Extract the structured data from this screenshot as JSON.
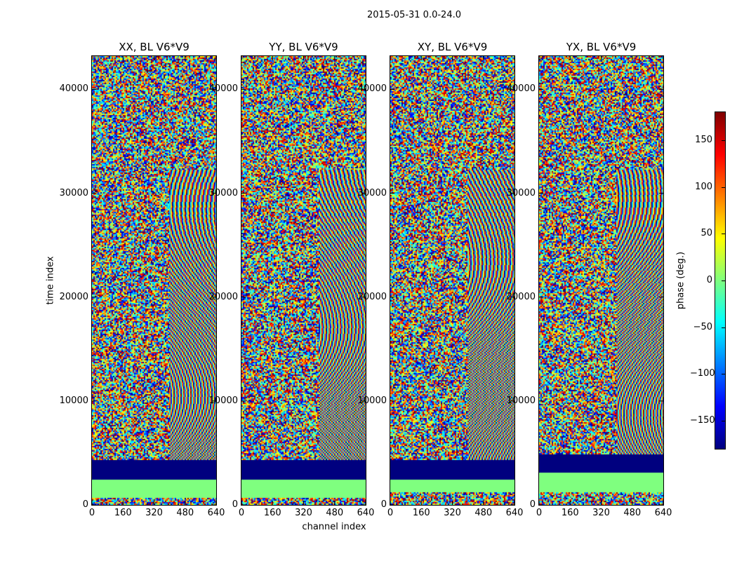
{
  "suptitle": "2015-05-31 0.0-24.0",
  "chart_data": [
    {
      "type": "heatmap",
      "title": "XX, BL V6*V9",
      "xlabel": "",
      "ylabel": "time index",
      "xlim": [
        0,
        640
      ],
      "ylim": [
        0,
        43200
      ],
      "xticks": [
        0,
        160,
        320,
        480,
        640
      ],
      "yticks": [
        0,
        10000,
        20000,
        30000,
        40000
      ]
    },
    {
      "type": "heatmap",
      "title": "YY, BL V6*V9",
      "xlabel": "channel index",
      "ylabel": "",
      "xlim": [
        0,
        640
      ],
      "ylim": [
        0,
        43200
      ],
      "xticks": [
        0,
        160,
        320,
        480,
        640
      ],
      "yticks": [
        0,
        10000,
        20000,
        30000,
        40000
      ]
    },
    {
      "type": "heatmap",
      "title": "XY, BL V6*V9",
      "xlabel": "",
      "ylabel": "",
      "xlim": [
        0,
        640
      ],
      "ylim": [
        0,
        43200
      ],
      "xticks": [
        0,
        160,
        320,
        480,
        640
      ],
      "yticks": [
        0,
        10000,
        20000,
        30000,
        40000
      ]
    },
    {
      "type": "heatmap",
      "title": "YX, BL V6*V9",
      "xlabel": "",
      "ylabel": "",
      "xlim": [
        0,
        640
      ],
      "ylim": [
        0,
        43200
      ],
      "xticks": [
        0,
        160,
        320,
        480,
        640
      ],
      "yticks": [
        0,
        10000,
        20000,
        30000,
        40000
      ]
    }
  ],
  "colorbar": {
    "label": "phase (deg.)",
    "range": [
      -180,
      180
    ],
    "ticks": [
      150,
      100,
      50,
      0,
      -50,
      -100,
      -150
    ],
    "tick_labels": [
      "150",
      "100",
      "50",
      "0",
      "−50",
      "−100",
      "−150"
    ],
    "colormap": "jet",
    "colors": [
      "#00007f",
      "#0000ff",
      "#007fff",
      "#00ffff",
      "#7fff7f",
      "#ffff00",
      "#ff7f00",
      "#ff0000",
      "#7f0000"
    ]
  }
}
